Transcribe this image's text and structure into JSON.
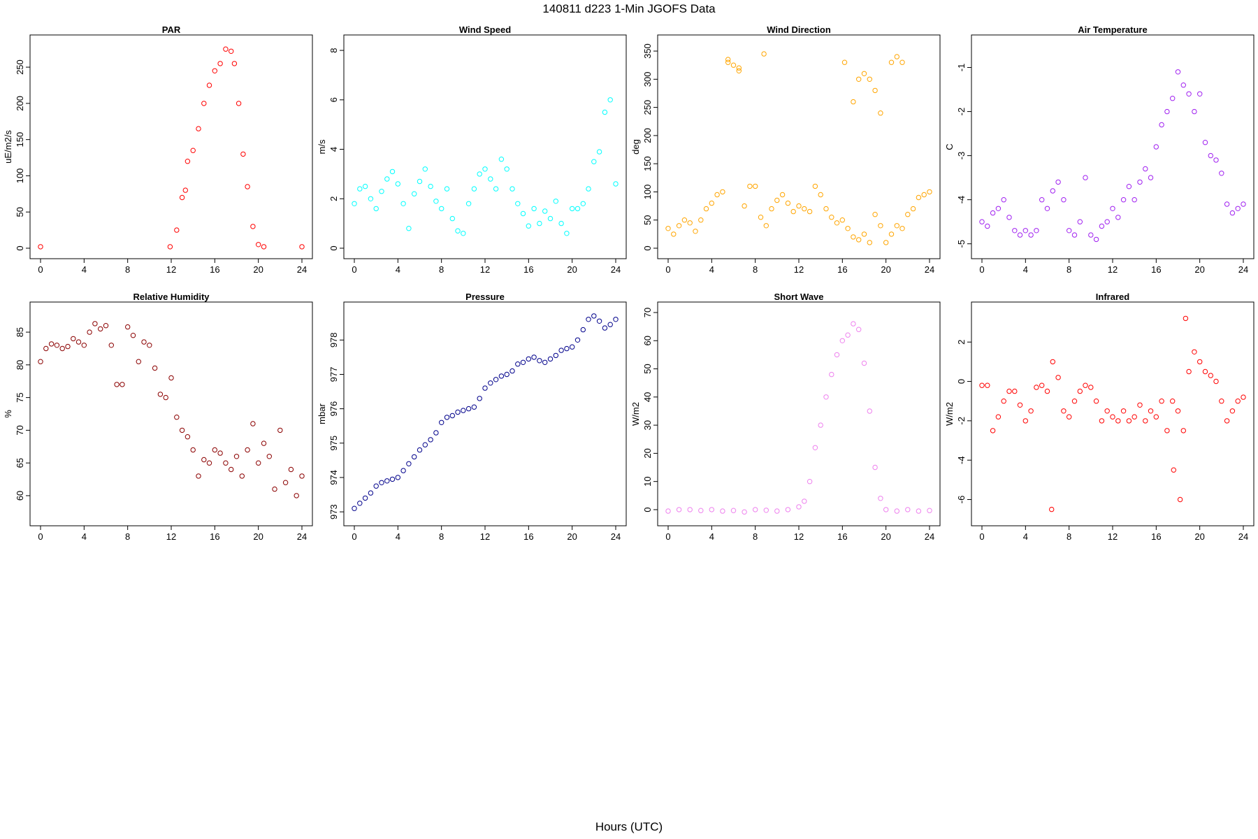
{
  "title": "140811   d223   1-Min  JGOFS Data",
  "xlabel": "Hours (UTC)",
  "chart_data": [
    {
      "type": "scatter",
      "title": "PAR",
      "ylabel": "uE/m2/s",
      "color": "#ff0000",
      "xlim": [
        0,
        24
      ],
      "ylim": [
        0,
        280
      ],
      "xticks": [
        0,
        4,
        8,
        12,
        16,
        20,
        24
      ],
      "yticks": [
        0,
        50,
        100,
        150,
        200,
        250
      ],
      "x": [
        0,
        11.9,
        12.5,
        13.0,
        13.3,
        13.5,
        14.0,
        14.5,
        15.0,
        15.5,
        16.0,
        16.5,
        17.0,
        17.5,
        17.8,
        18.2,
        18.6,
        19.0,
        19.5,
        20.0,
        20.5,
        24
      ],
      "y": [
        2,
        2,
        25,
        70,
        80,
        120,
        135,
        165,
        200,
        225,
        245,
        255,
        275,
        272,
        255,
        200,
        130,
        85,
        30,
        5,
        2,
        2
      ]
    },
    {
      "type": "scatter",
      "title": "Wind Speed",
      "ylabel": "m/s",
      "color": "#00ffff",
      "xlim": [
        0,
        24
      ],
      "ylim": [
        0,
        8.2
      ],
      "xticks": [
        0,
        4,
        8,
        12,
        16,
        20,
        24
      ],
      "yticks": [
        0,
        2,
        4,
        6,
        8
      ],
      "x": [
        0,
        0.5,
        1,
        1.5,
        2,
        2.5,
        3,
        3.5,
        4,
        4.5,
        5,
        5.5,
        6,
        6.5,
        7,
        7.5,
        8,
        8.5,
        9,
        9.5,
        10,
        10.5,
        11,
        11.5,
        12,
        12.5,
        13,
        13.5,
        14,
        14.5,
        15,
        15.5,
        16,
        16.5,
        17,
        17.5,
        18,
        18.5,
        19,
        19.5,
        20,
        20.5,
        21,
        21.5,
        22,
        22.5,
        23,
        23.5,
        24
      ],
      "y": [
        1.8,
        2.4,
        2.5,
        2.0,
        1.6,
        2.3,
        2.8,
        3.1,
        2.6,
        1.8,
        0.8,
        2.2,
        2.7,
        3.2,
        2.5,
        1.9,
        1.6,
        2.4,
        1.2,
        0.7,
        0.6,
        1.8,
        2.4,
        3.0,
        3.2,
        2.8,
        2.4,
        3.6,
        3.2,
        2.4,
        1.8,
        1.4,
        0.9,
        1.6,
        1.0,
        1.5,
        1.2,
        1.9,
        1.0,
        0.6,
        1.6,
        1.6,
        1.8,
        2.4,
        3.5,
        3.9,
        5.5,
        6.0,
        2.6
      ]
    },
    {
      "type": "scatter",
      "title": "Wind Direction",
      "ylabel": "deg",
      "color": "#ffa500",
      "xlim": [
        0,
        24
      ],
      "ylim": [
        0,
        360
      ],
      "xticks": [
        0,
        4,
        8,
        12,
        16,
        20,
        24
      ],
      "yticks": [
        0,
        50,
        100,
        150,
        200,
        250,
        300,
        350
      ],
      "x": [
        0,
        0.5,
        1,
        1.5,
        2,
        2.5,
        3,
        3.5,
        4,
        4.5,
        5,
        5.5,
        6,
        6.5,
        7,
        7.5,
        8,
        8.5,
        9,
        9.5,
        10,
        10.5,
        11,
        11.5,
        12,
        12.5,
        13,
        13.5,
        14,
        14.5,
        15,
        15.5,
        16,
        16.5,
        17,
        17.5,
        18,
        18.5,
        19,
        19.5,
        20,
        20.5,
        21,
        21.5,
        22,
        22.5,
        23,
        23.5,
        24,
        5.5,
        6.5,
        8.8,
        16.2,
        17.0,
        17.5,
        18.0,
        18.5,
        19.0,
        19.5,
        20.5,
        21.0,
        21.5
      ],
      "y": [
        35,
        25,
        40,
        50,
        45,
        30,
        50,
        70,
        80,
        95,
        100,
        330,
        325,
        315,
        75,
        110,
        110,
        55,
        40,
        70,
        85,
        95,
        80,
        65,
        75,
        70,
        65,
        110,
        95,
        70,
        55,
        45,
        50,
        35,
        20,
        15,
        25,
        10,
        60,
        40,
        10,
        25,
        40,
        35,
        60,
        70,
        90,
        95,
        100,
        335,
        320,
        345,
        330,
        260,
        300,
        310,
        300,
        280,
        240,
        330,
        340,
        330
      ]
    },
    {
      "type": "scatter",
      "title": "Air Temperature",
      "ylabel": "C",
      "color": "#a020f0",
      "xlim": [
        0,
        24
      ],
      "ylim": [
        -5.1,
        -0.5
      ],
      "xticks": [
        0,
        4,
        8,
        12,
        16,
        20,
        24
      ],
      "yticks": [
        -5,
        -4,
        -3,
        -2,
        -1
      ],
      "x": [
        0,
        0.5,
        1,
        1.5,
        2,
        2.5,
        3,
        3.5,
        4,
        4.5,
        5,
        5.5,
        6,
        6.5,
        7,
        7.5,
        8,
        8.5,
        9,
        9.5,
        10,
        10.5,
        11,
        11.5,
        12,
        12.5,
        13,
        13.5,
        14,
        14.5,
        15,
        15.5,
        16,
        16.5,
        17,
        17.5,
        18,
        18.5,
        19,
        19.5,
        20,
        20.5,
        21,
        21.5,
        22,
        22.5,
        23,
        23.5,
        24
      ],
      "y": [
        -4.5,
        -4.6,
        -4.3,
        -4.2,
        -4.0,
        -4.4,
        -4.7,
        -4.8,
        -4.7,
        -4.8,
        -4.7,
        -4.0,
        -4.2,
        -3.8,
        -3.6,
        -4.0,
        -4.7,
        -4.8,
        -4.5,
        -3.5,
        -4.8,
        -4.9,
        -4.6,
        -4.5,
        -4.2,
        -4.4,
        -4.0,
        -3.7,
        -4.0,
        -3.6,
        -3.3,
        -3.5,
        -2.8,
        -2.3,
        -2.0,
        -1.7,
        -1.1,
        -1.4,
        -1.6,
        -2.0,
        -1.6,
        -2.7,
        -3.0,
        -3.1,
        -3.4,
        -4.1,
        -4.3,
        -4.2,
        -4.1
      ]
    },
    {
      "type": "scatter",
      "title": "Relative Humidity",
      "ylabel": "%",
      "color": "#8b0000",
      "xlim": [
        0,
        24
      ],
      "ylim": [
        57,
        88
      ],
      "xticks": [
        0,
        4,
        8,
        12,
        16,
        20,
        24
      ],
      "yticks": [
        60,
        65,
        70,
        75,
        80,
        85
      ],
      "x": [
        0,
        0.5,
        1,
        1.5,
        2,
        2.5,
        3,
        3.5,
        4,
        4.5,
        5,
        5.5,
        6,
        6.5,
        7,
        7.5,
        8,
        8.5,
        9,
        9.5,
        10,
        10.5,
        11,
        11.5,
        12,
        12.5,
        13,
        13.5,
        14,
        14.5,
        15,
        15.5,
        16,
        16.5,
        17,
        17.5,
        18,
        18.5,
        19,
        19.5,
        20,
        20.5,
        21,
        21.5,
        22,
        22.5,
        23,
        23.5,
        24
      ],
      "y": [
        80.5,
        82.5,
        83.2,
        83.0,
        82.5,
        82.8,
        84.0,
        83.5,
        83.0,
        85.0,
        86.3,
        85.5,
        86.0,
        83.0,
        77.0,
        77.0,
        85.8,
        84.5,
        80.5,
        83.5,
        83.0,
        79.5,
        75.5,
        75.0,
        78.0,
        72.0,
        70.0,
        69.0,
        67.0,
        63.0,
        65.5,
        65.0,
        67.0,
        66.5,
        65.0,
        64.0,
        66.0,
        63.0,
        67.0,
        71.0,
        65.0,
        68.0,
        66.0,
        61.0,
        70.0,
        62.0,
        64.0,
        60.0,
        63.0
      ]
    },
    {
      "type": "scatter",
      "title": "Pressure",
      "ylabel": "mbar",
      "color": "#00008b",
      "xlim": [
        0,
        24
      ],
      "ylim": [
        972.9,
        978.8
      ],
      "xticks": [
        0,
        4,
        8,
        12,
        16,
        20,
        24
      ],
      "yticks": [
        973,
        974,
        975,
        976,
        977,
        978
      ],
      "x": [
        0,
        0.5,
        1,
        1.5,
        2,
        2.5,
        3,
        3.5,
        4,
        4.5,
        5,
        5.5,
        6,
        6.5,
        7,
        7.5,
        8,
        8.5,
        9,
        9.5,
        10,
        10.5,
        11,
        11.5,
        12,
        12.5,
        13,
        13.5,
        14,
        14.5,
        15,
        15.5,
        16,
        16.5,
        17,
        17.5,
        18,
        18.5,
        19,
        19.5,
        20,
        20.5,
        21,
        21.5,
        22,
        22.5,
        23,
        23.5,
        24
      ],
      "y": [
        973.1,
        973.25,
        973.4,
        973.55,
        973.75,
        973.85,
        973.9,
        973.95,
        974.0,
        974.2,
        974.4,
        974.6,
        974.8,
        974.95,
        975.1,
        975.3,
        975.6,
        975.75,
        975.8,
        975.9,
        975.95,
        976.0,
        976.05,
        976.3,
        976.6,
        976.75,
        976.85,
        976.95,
        977.0,
        977.1,
        977.3,
        977.35,
        977.45,
        977.5,
        977.4,
        977.35,
        977.45,
        977.55,
        977.7,
        977.75,
        977.8,
        978.0,
        978.3,
        978.6,
        978.7,
        978.55,
        978.35,
        978.45,
        978.6
      ]
    },
    {
      "type": "scatter",
      "title": "Short Wave",
      "ylabel": "W/m2",
      "color": "#ee82ee",
      "xlim": [
        0,
        24
      ],
      "ylim": [
        -2,
        70
      ],
      "xticks": [
        0,
        4,
        8,
        12,
        16,
        20,
        24
      ],
      "yticks": [
        0,
        10,
        20,
        30,
        40,
        50,
        60,
        70
      ],
      "x": [
        0,
        1,
        2,
        3,
        4,
        5,
        6,
        7,
        8,
        9,
        10,
        11,
        12,
        12.5,
        13,
        13.5,
        14,
        14.5,
        15,
        15.5,
        16,
        16.5,
        17,
        17.5,
        18,
        18.5,
        19,
        19.5,
        20,
        21,
        22,
        23,
        24
      ],
      "y": [
        -0.5,
        0,
        0,
        -0.3,
        0,
        -0.5,
        -0.3,
        -0.8,
        0,
        -0.2,
        -0.5,
        0,
        1,
        3,
        10,
        22,
        30,
        40,
        48,
        55,
        60,
        62,
        66,
        64,
        52,
        35,
        15,
        4,
        0,
        -0.5,
        0,
        -0.5,
        -0.3
      ]
    },
    {
      "type": "scatter",
      "title": "Infrared",
      "ylabel": "W/m2",
      "color": "#ff0000",
      "xlim": [
        0,
        24
      ],
      "ylim": [
        -6.8,
        3.5
      ],
      "xticks": [
        0,
        4,
        8,
        12,
        16,
        20,
        24
      ],
      "yticks": [
        -6,
        -4,
        -2,
        0,
        2
      ],
      "x": [
        0,
        0.5,
        1,
        1.5,
        2,
        2.5,
        3,
        3.5,
        4,
        4.5,
        5,
        5.5,
        6,
        6.5,
        7,
        7.5,
        8,
        8.5,
        9,
        9.5,
        10,
        10.5,
        11,
        11.5,
        12,
        12.5,
        13,
        13.5,
        14,
        14.5,
        15,
        15.5,
        16,
        16.5,
        17,
        17.5,
        18,
        18.5,
        19,
        19.5,
        20,
        20.5,
        21,
        21.5,
        22,
        22.5,
        23,
        23.5,
        24,
        6.4,
        17.6,
        18.2,
        18.7
      ],
      "y": [
        -0.2,
        -0.2,
        -2.5,
        -1.8,
        -1.0,
        -0.5,
        -0.5,
        -1.2,
        -2.0,
        -1.5,
        -0.3,
        -0.2,
        -0.5,
        1.0,
        0.2,
        -1.5,
        -1.8,
        -1.0,
        -0.5,
        -0.2,
        -0.3,
        -1.0,
        -2.0,
        -1.5,
        -1.8,
        -2.0,
        -1.5,
        -2.0,
        -1.8,
        -1.2,
        -2.0,
        -1.5,
        -1.8,
        -1.0,
        -2.5,
        -1.0,
        -1.5,
        -2.5,
        0.5,
        1.5,
        1.0,
        0.5,
        0.3,
        0.0,
        -1.0,
        -2.0,
        -1.5,
        -1.0,
        -0.8,
        -6.5,
        -4.5,
        -6.0,
        3.2
      ]
    }
  ]
}
